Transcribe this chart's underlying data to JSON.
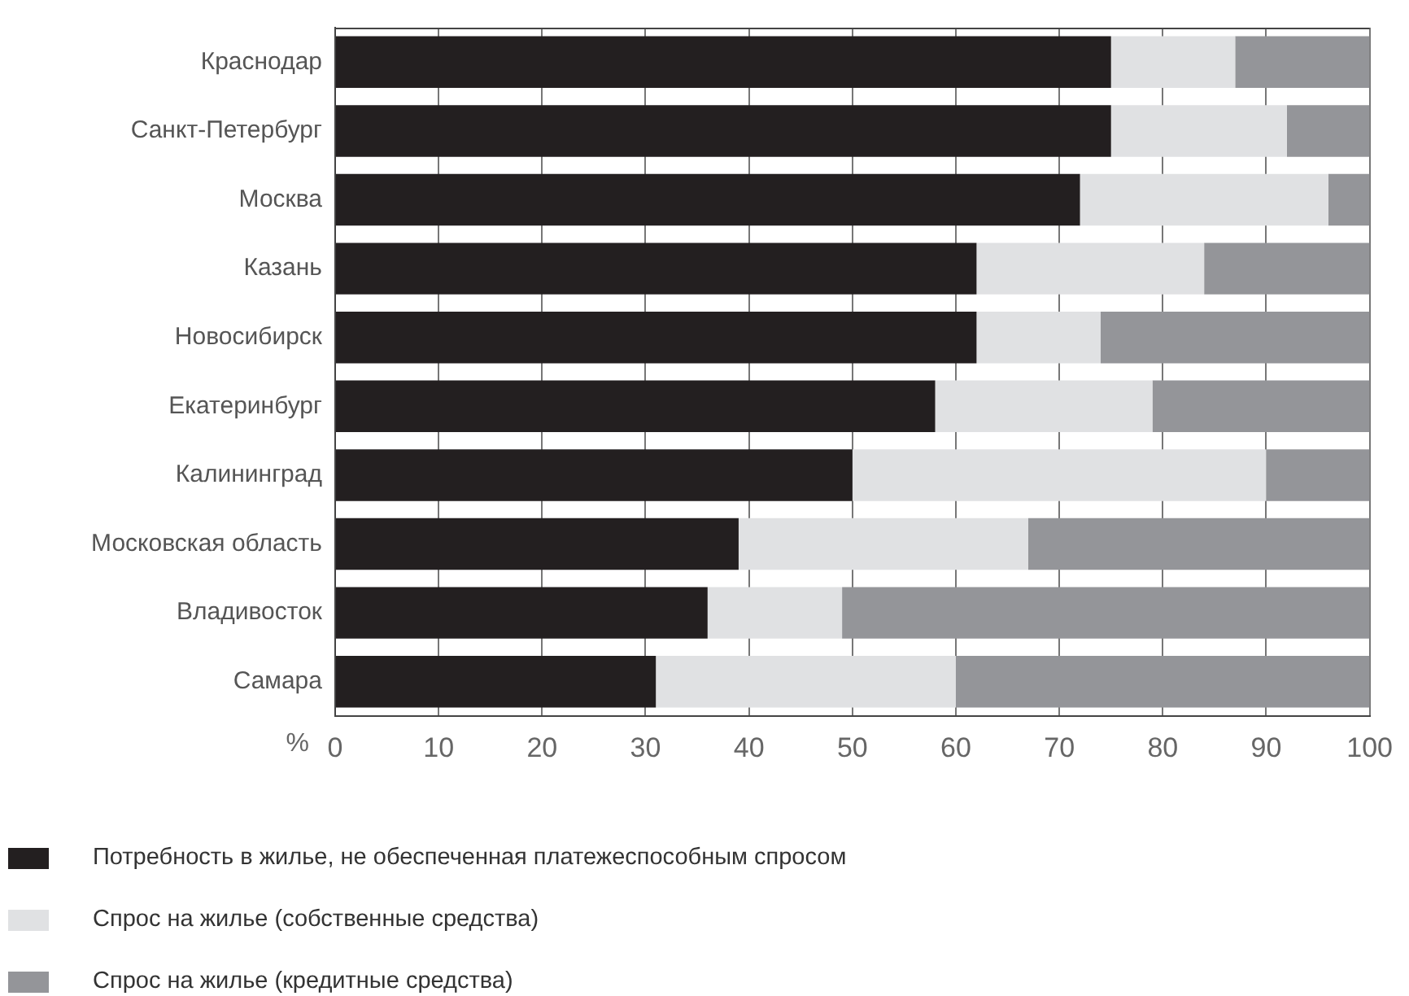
{
  "chart_data": {
    "type": "bar",
    "orientation": "horizontal",
    "stacked": true,
    "xlabel": "%",
    "categories": [
      "Краснодар",
      "Санкт-Петербург",
      "Москва",
      "Казань",
      "Новосибирск",
      "Екатеринбург",
      "Калининград",
      "Московская область",
      "Владивосток",
      "Самара"
    ],
    "series": [
      {
        "name": "Потребность в жилье, не обеспеченная платежеспособным спросом",
        "color": "#231f20",
        "values": [
          75,
          75,
          72,
          62,
          62,
          58,
          50,
          39,
          36,
          31
        ]
      },
      {
        "name": "Спрос на жилье (собственные средства)",
        "color": "#e0e1e3",
        "values": [
          12,
          17,
          24,
          22,
          12,
          21,
          40,
          28,
          13,
          29
        ]
      },
      {
        "name": "Спрос на жилье (кредитные средства)",
        "color": "#949599",
        "values": [
          13,
          8,
          4,
          16,
          26,
          21,
          10,
          33,
          51,
          40
        ]
      }
    ],
    "xlim": [
      0,
      100
    ],
    "xticks": [
      0,
      10,
      20,
      30,
      40,
      50,
      60,
      70,
      80,
      90,
      100
    ],
    "grid": "x",
    "legend": "bottom"
  }
}
